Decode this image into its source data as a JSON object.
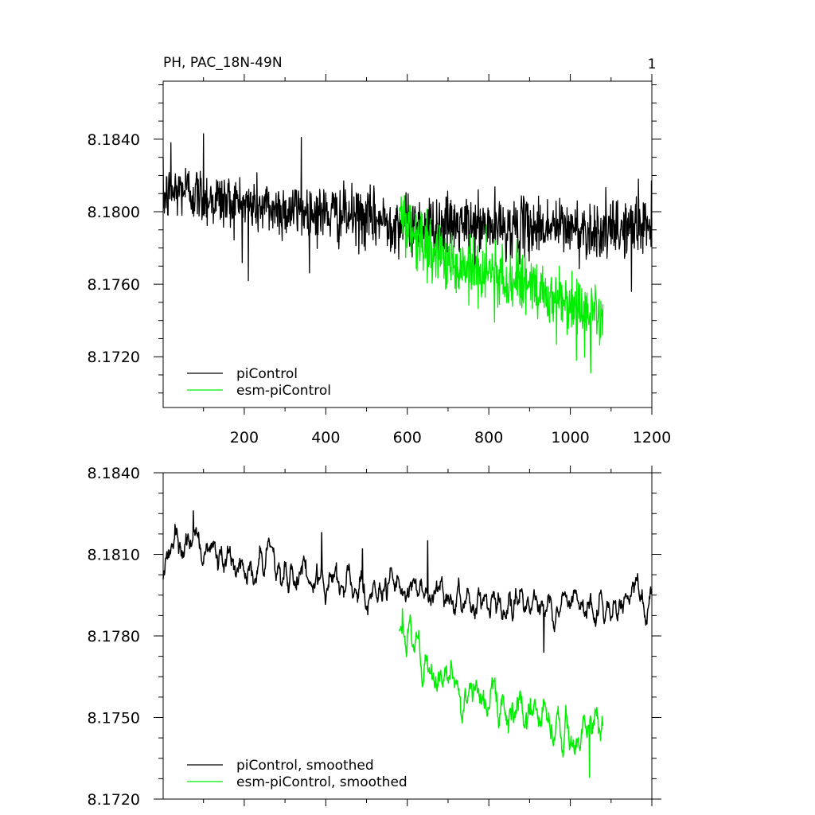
{
  "figure": {
    "title": "PH, PAC_18N-49N",
    "corner_label": "1"
  },
  "colors": {
    "piControl": "#000000",
    "esm": "#00ee00"
  },
  "chart_data": [
    {
      "type": "line",
      "title": "PH, PAC_18N-49N",
      "xlabel": "",
      "ylabel": "",
      "xlim": [
        1,
        1200
      ],
      "ylim": [
        8.1692,
        8.1872
      ],
      "x_ticks": [
        200,
        400,
        600,
        800,
        1000,
        1200
      ],
      "x_tick_labels": [
        "200",
        "400",
        "600",
        "800",
        "1000",
        "1200"
      ],
      "y_ticks": [
        8.172,
        8.176,
        8.18,
        8.184
      ],
      "y_tick_labels": [
        "8.1720",
        "8.1760",
        "8.1800",
        "8.1840"
      ],
      "grid": false,
      "legend": "bottom-left",
      "series": [
        {
          "name": "piControl",
          "color": "#000000",
          "x_range": [
            1,
            1200
          ],
          "anchors": [
            [
              1,
              8.1808
            ],
            [
              50,
              8.1813
            ],
            [
              100,
              8.1808
            ],
            [
              150,
              8.1806
            ],
            [
              200,
              8.1804
            ],
            [
              300,
              8.1801
            ],
            [
              400,
              8.1799
            ],
            [
              500,
              8.1796
            ],
            [
              580,
              8.1794
            ],
            [
              650,
              8.1793
            ],
            [
              750,
              8.1792
            ],
            [
              850,
              8.1791
            ],
            [
              950,
              8.1792
            ],
            [
              1050,
              8.179
            ],
            [
              1100,
              8.1789
            ],
            [
              1150,
              8.1792
            ],
            [
              1200,
              8.1793
            ]
          ],
          "noise_sd": 0.0008,
          "spikes": [
            [
              20,
              8.1838
            ],
            [
              100,
              8.1843
            ],
            [
              210,
              8.1762
            ],
            [
              340,
              8.1841
            ],
            [
              1150,
              8.1756
            ],
            [
              1167,
              8.1818
            ]
          ]
        },
        {
          "name": "esm-piControl",
          "color": "#00ee00",
          "x_range": [
            580,
            1080
          ],
          "anchors": [
            [
              580,
              8.1797
            ],
            [
              650,
              8.1779
            ],
            [
              750,
              8.1768
            ],
            [
              850,
              8.1762
            ],
            [
              950,
              8.1752
            ],
            [
              1050,
              8.1745
            ],
            [
              1080,
              8.1745
            ]
          ],
          "noise_sd": 0.0009,
          "spikes": [
            [
              1015,
              8.1718
            ],
            [
              1050,
              8.1711
            ]
          ]
        }
      ]
    },
    {
      "type": "line",
      "xlabel": "",
      "ylabel": "",
      "xlim": [
        1,
        1200
      ],
      "ylim": [
        8.172,
        8.184
      ],
      "x_ticks": [
        200,
        400,
        600,
        800,
        1000,
        1200
      ],
      "x_tick_labels": [],
      "y_ticks": [
        8.172,
        8.175,
        8.178,
        8.181,
        8.184
      ],
      "y_tick_labels": [
        "8.1720",
        "8.1750",
        "8.1780",
        "8.1810",
        "8.1840"
      ],
      "grid": false,
      "legend": "bottom-left",
      "series": [
        {
          "name": "piControl, smoothed",
          "color": "#000000",
          "x_range": [
            1,
            1200
          ],
          "anchors": [
            [
              1,
              8.1808
            ],
            [
              50,
              8.1815
            ],
            [
              100,
              8.1813
            ],
            [
              150,
              8.1808
            ],
            [
              200,
              8.1805
            ],
            [
              300,
              8.1802
            ],
            [
              400,
              8.1799
            ],
            [
              500,
              8.1797
            ],
            [
              580,
              8.1796
            ],
            [
              650,
              8.1794
            ],
            [
              750,
              8.1793
            ],
            [
              850,
              8.1792
            ],
            [
              950,
              8.1792
            ],
            [
              1050,
              8.179
            ],
            [
              1100,
              8.1789
            ],
            [
              1150,
              8.1792
            ],
            [
              1200,
              8.1797
            ]
          ],
          "noise_sd": 0.0005,
          "spikes": [
            [
              30,
              8.1821
            ],
            [
              75,
              8.1826
            ],
            [
              390,
              8.1818
            ],
            [
              490,
              8.1812
            ],
            [
              650,
              8.1815
            ],
            [
              935,
              8.1774
            ]
          ]
        },
        {
          "name": "esm-piControl, smoothed",
          "color": "#00ee00",
          "x_range": [
            580,
            1080
          ],
          "anchors": [
            [
              580,
              8.1782
            ],
            [
              600,
              8.1778
            ],
            [
              650,
              8.1771
            ],
            [
              700,
              8.1764
            ],
            [
              750,
              8.1759
            ],
            [
              800,
              8.1757
            ],
            [
              850,
              8.1753
            ],
            [
              900,
              8.1749
            ],
            [
              950,
              8.1746
            ],
            [
              1000,
              8.1746
            ],
            [
              1050,
              8.1741
            ],
            [
              1080,
              8.1747
            ]
          ],
          "noise_sd": 0.0006,
          "spikes": [
            [
              588,
              8.179
            ],
            [
              1047,
              8.1728
            ]
          ]
        }
      ]
    }
  ]
}
